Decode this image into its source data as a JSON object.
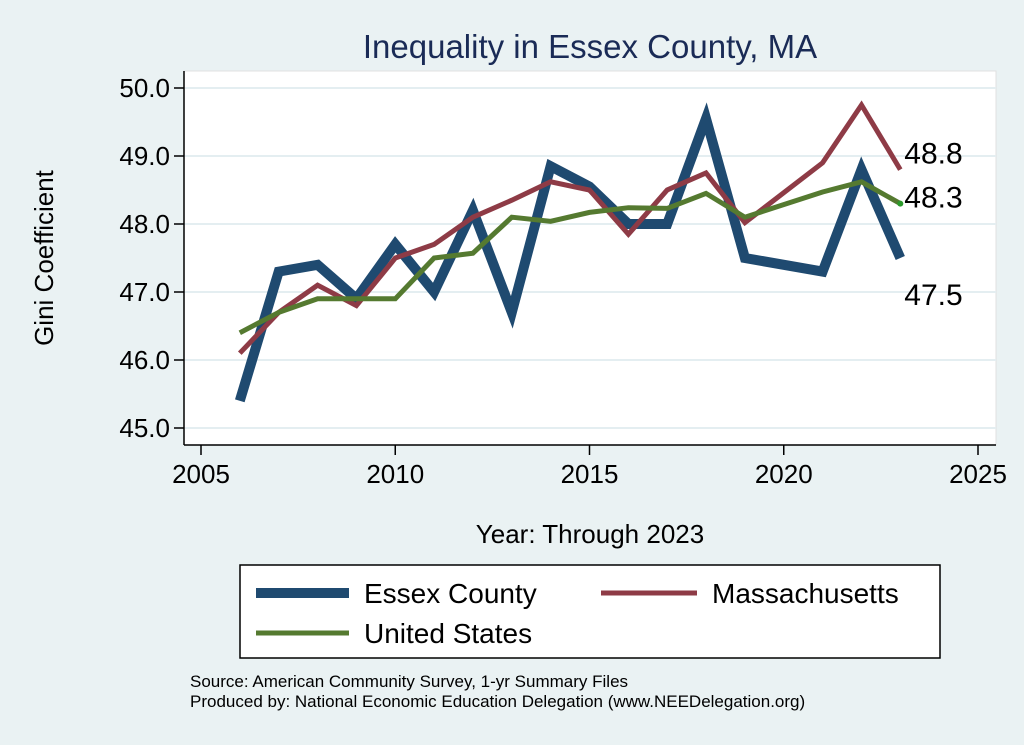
{
  "chart_data": {
    "type": "line",
    "title": "Inequality in Essex County, MA",
    "xlabel": "Year: Through 2023",
    "ylabel": "Gini Coefficient",
    "xlim": [
      2005,
      2025
    ],
    "ylim": [
      44.8,
      50.2
    ],
    "xticks": [
      2005,
      2010,
      2015,
      2020,
      2025
    ],
    "yticks": [
      "45.0",
      "46.0",
      "47.0",
      "48.0",
      "49.0",
      "50.0"
    ],
    "grid": true,
    "legend_position": "bottom",
    "series": [
      {
        "name": "Essex County",
        "color": "#1f4a70",
        "x": [
          2006,
          2007,
          2008,
          2009,
          2010,
          2011,
          2012,
          2013,
          2014,
          2015,
          2016,
          2017,
          2018,
          2019,
          2021,
          2022,
          2023
        ],
        "values": [
          45.4,
          47.3,
          47.4,
          46.9,
          47.7,
          47.0,
          48.2,
          46.7,
          48.85,
          48.55,
          48.0,
          48.0,
          49.55,
          47.5,
          47.3,
          48.8,
          47.5
        ],
        "end_label": "47.5"
      },
      {
        "name": "Massachusetts",
        "color": "#8e3b46",
        "x": [
          2006,
          2007,
          2008,
          2009,
          2010,
          2011,
          2012,
          2013,
          2014,
          2015,
          2016,
          2017,
          2018,
          2019,
          2021,
          2022,
          2023
        ],
        "values": [
          46.1,
          46.7,
          47.1,
          46.8,
          47.5,
          47.7,
          48.1,
          48.35,
          48.62,
          48.5,
          47.85,
          48.5,
          48.75,
          48.02,
          48.9,
          49.75,
          48.8
        ],
        "end_label": "48.8"
      },
      {
        "name": "United States",
        "color": "#557a30",
        "x": [
          2006,
          2007,
          2008,
          2009,
          2010,
          2011,
          2012,
          2013,
          2014,
          2015,
          2016,
          2017,
          2018,
          2019,
          2021,
          2022,
          2023
        ],
        "values": [
          46.4,
          46.7,
          46.9,
          46.9,
          46.9,
          47.5,
          47.57,
          48.1,
          48.04,
          48.17,
          48.24,
          48.23,
          48.45,
          48.1,
          48.47,
          48.62,
          48.3
        ],
        "end_label": "48.3"
      }
    ]
  },
  "source": {
    "line1": "Source: American Community Survey, 1-yr Summary Files",
    "line2": "Produced by: National Economic Education Delegation (www.NEEDelegation.org)"
  }
}
